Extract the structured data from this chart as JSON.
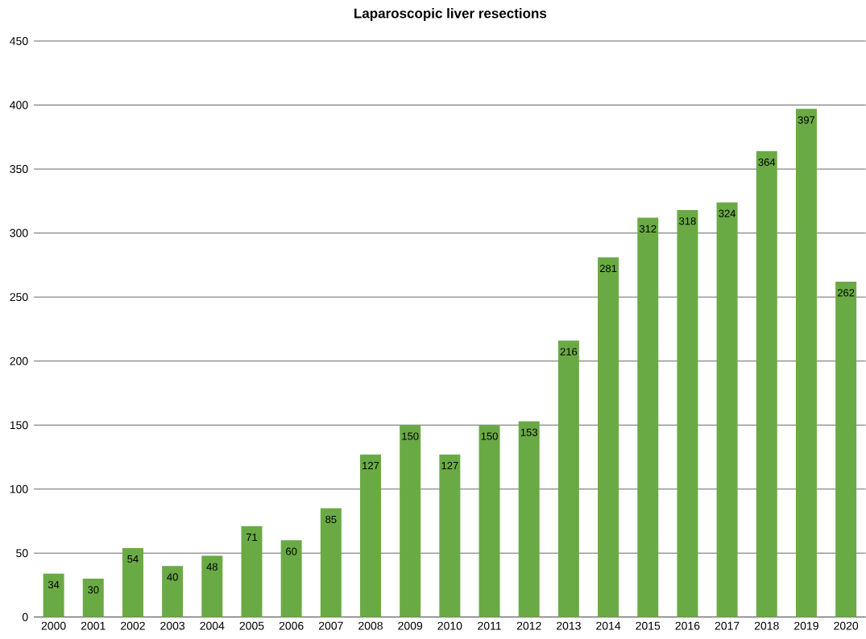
{
  "chart_data": {
    "type": "bar",
    "title": "Laparoscopic liver resections",
    "categories": [
      "2000",
      "2001",
      "2002",
      "2003",
      "2004",
      "2005",
      "2006",
      "2007",
      "2008",
      "2009",
      "2010",
      "2011",
      "2012",
      "2013",
      "2014",
      "2015",
      "2016",
      "2017",
      "2018",
      "2019",
      "2020"
    ],
    "values": [
      34,
      30,
      54,
      40,
      48,
      71,
      60,
      85,
      127,
      150,
      127,
      150,
      153,
      216,
      281,
      312,
      318,
      324,
      364,
      397,
      262
    ],
    "color": "#6aaa45",
    "ylim": [
      0,
      450
    ],
    "yticks": [
      0,
      50,
      100,
      150,
      200,
      250,
      300,
      350,
      400,
      450
    ],
    "grid": "y",
    "data_labels": true
  }
}
